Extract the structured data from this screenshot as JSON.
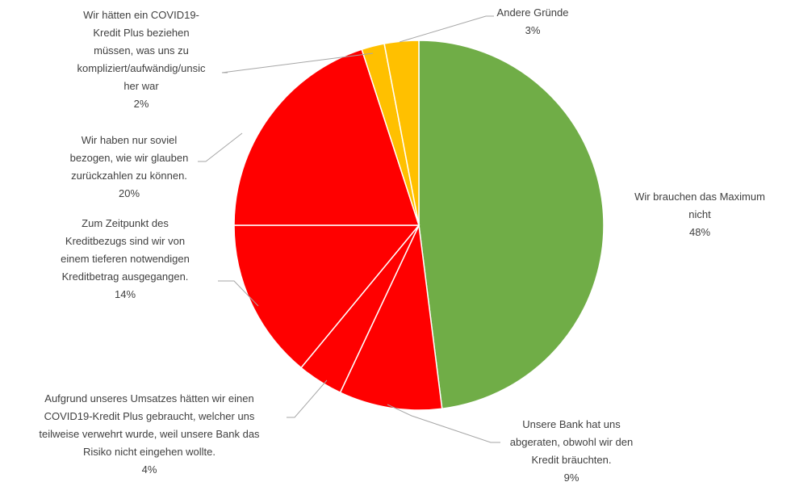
{
  "chart_data": {
    "type": "pie",
    "title": "",
    "slices": [
      {
        "label_lines": [
          "Wir brauchen das Maximum",
          "nicht"
        ],
        "percent_text": "48%",
        "value": 48,
        "color": "#70ad47"
      },
      {
        "label_lines": [
          "Unsere Bank hat uns",
          "abgeraten, obwohl wir den",
          "Kredit bräuchten."
        ],
        "percent_text": "9%",
        "value": 9,
        "color": "#ff0000"
      },
      {
        "label_lines": [
          "Aufgrund unseres Umsatzes hätten wir einen",
          "COVID19-Kredit Plus gebraucht, welcher uns",
          "teilweise verwehrt wurde, weil unsere Bank das",
          "Risiko nicht eingehen wollte."
        ],
        "percent_text": "4%",
        "value": 4,
        "color": "#ff0000"
      },
      {
        "label_lines": [
          "Zum Zeitpunkt des",
          "Kreditbezugs sind wir von",
          "einem tieferen notwendigen",
          "Kreditbetrag ausgegangen."
        ],
        "percent_text": "14%",
        "value": 14,
        "color": "#ff0000"
      },
      {
        "label_lines": [
          "Wir haben nur soviel",
          "bezogen, wie wir glauben",
          "zurückzahlen zu können."
        ],
        "percent_text": "20%",
        "value": 20,
        "color": "#ff0000"
      },
      {
        "label_lines": [
          "Wir hätten ein COVID19-",
          "Kredit Plus beziehen",
          "müssen, was uns zu",
          "kompliziert/aufwändig/unsic",
          "her war"
        ],
        "percent_text": "2%",
        "value": 2,
        "color": "#ffc000"
      },
      {
        "label_lines": [
          "Andere Gründe"
        ],
        "percent_text": "3%",
        "value": 3,
        "color": "#ffc000"
      }
    ],
    "start_angle": "12 o'clock",
    "direction": "clockwise",
    "slice_border_color": "#ffffff",
    "leader_line_color": "#a6a6a6",
    "label_color": "#404040"
  }
}
